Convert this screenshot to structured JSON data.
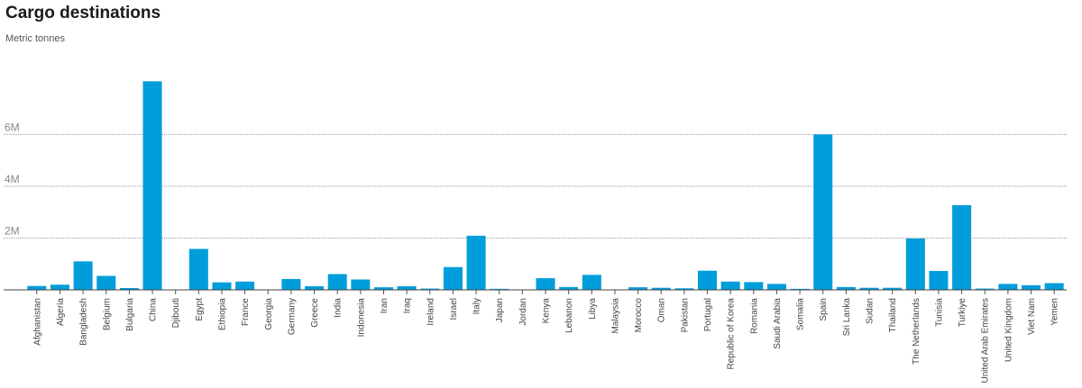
{
  "chart_data": {
    "type": "bar",
    "title": "Cargo destinations",
    "subtitle": "Metric tonnes",
    "xlabel": "",
    "ylabel": "",
    "ylim": [
      0,
      8200000
    ],
    "yticks": [
      {
        "value": 2000000,
        "label": "2M"
      },
      {
        "value": 4000000,
        "label": "4M"
      },
      {
        "value": 6000000,
        "label": "6M"
      }
    ],
    "grid": true,
    "bar_color": "#009ddc",
    "categories": [
      "Afghanistan",
      "Algeria",
      "Bangladesh",
      "Belgium",
      "Bulgaria",
      "China",
      "Djibouti",
      "Egypt",
      "Ethiopia",
      "France",
      "Georgia",
      "Germany",
      "Greece",
      "India",
      "Indonesia",
      "Iran",
      "Iraq",
      "Ireland",
      "Israel",
      "Italy",
      "Japan",
      "Jordan",
      "Kenya",
      "Lebanon",
      "Libya",
      "Malaysia",
      "Morocco",
      "Oman",
      "Pakistan",
      "Portugal",
      "Republic of Korea",
      "Romania",
      "Saudi Arabia",
      "Somalia",
      "Spain",
      "Sri Lanka",
      "Sudan",
      "Thailand",
      "The Netherlands",
      "Tunisia",
      "Turkiye",
      "United Arab Emirates",
      "United Kingdom",
      "Viet Nam",
      "Yemen"
    ],
    "values": [
      150000,
      200000,
      1100000,
      540000,
      70000,
      8050000,
      0,
      1580000,
      290000,
      320000,
      0,
      420000,
      140000,
      610000,
      400000,
      100000,
      140000,
      50000,
      880000,
      2090000,
      40000,
      0,
      450000,
      110000,
      580000,
      0,
      100000,
      80000,
      60000,
      740000,
      320000,
      300000,
      230000,
      40000,
      6000000,
      110000,
      80000,
      80000,
      1980000,
      730000,
      3270000,
      50000,
      230000,
      180000,
      260000
    ]
  }
}
